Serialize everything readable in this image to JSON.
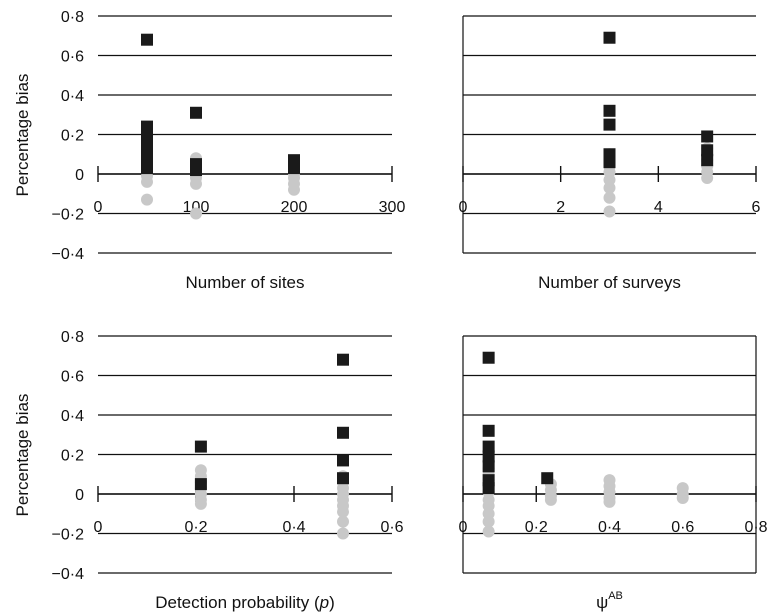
{
  "figure": {
    "ylabel": "Percentage bias",
    "y_tick_labels": [
      "0·8",
      "0·6",
      "0·4",
      "0·2",
      "0",
      "−0·2",
      "−0·4"
    ]
  },
  "colors": {
    "series_a": "#1a1a1a",
    "series_b": "#c8c8c8",
    "gridline": "#111111",
    "axis": "#111111"
  },
  "chart_data": [
    {
      "type": "scatter",
      "xlabel": "Number of sites",
      "xlabel_suffix": "",
      "xlabel_sup": "",
      "ylabel": "Percentage bias",
      "xlim": [
        0,
        300
      ],
      "ylim": [
        -0.4,
        0.8
      ],
      "x_ticks": [
        0,
        100,
        200,
        300
      ],
      "x_tick_labels": [
        "0",
        "100",
        "200",
        "300"
      ],
      "y_ticks": [
        0.8,
        0.6,
        0.4,
        0.2,
        0,
        -0.2,
        -0.4
      ],
      "grid": "horizontal",
      "left_axis": false,
      "frame": false,
      "series": [
        {
          "marker": "square",
          "color": "#1a1a1a",
          "points": [
            [
              50,
              0.68
            ],
            [
              50,
              0.24
            ],
            [
              50,
              0.2
            ],
            [
              50,
              0.17
            ],
            [
              50,
              0.12
            ],
            [
              50,
              0.09
            ],
            [
              50,
              0.06
            ],
            [
              50,
              0.03
            ],
            [
              100,
              0.31
            ],
            [
              100,
              0.05
            ],
            [
              100,
              0.02
            ],
            [
              200,
              0.07
            ],
            [
              200,
              0.03
            ]
          ]
        },
        {
          "marker": "circle",
          "color": "#c8c8c8",
          "points": [
            [
              50,
              0.11
            ],
            [
              50,
              0.08
            ],
            [
              50,
              0.05
            ],
            [
              50,
              0.02
            ],
            [
              50,
              -0.01
            ],
            [
              50,
              -0.04
            ],
            [
              50,
              -0.13
            ],
            [
              100,
              0.08
            ],
            [
              100,
              0.04
            ],
            [
              100,
              0.01
            ],
            [
              100,
              -0.02
            ],
            [
              100,
              -0.05
            ],
            [
              100,
              -0.2
            ],
            [
              200,
              0.06
            ],
            [
              200,
              0.03
            ],
            [
              200,
              0.0
            ],
            [
              200,
              -0.02
            ],
            [
              200,
              -0.05
            ],
            [
              200,
              -0.08
            ]
          ]
        }
      ]
    },
    {
      "type": "scatter",
      "xlabel": "Number of surveys",
      "xlabel_suffix": "",
      "xlabel_sup": "",
      "ylabel": "",
      "xlim": [
        0,
        6
      ],
      "ylim": [
        -0.4,
        0.8
      ],
      "x_ticks": [
        0,
        2,
        4,
        6
      ],
      "x_tick_labels": [
        "0",
        "2",
        "4",
        "6"
      ],
      "y_ticks": [
        0.8,
        0.6,
        0.4,
        0.2,
        0,
        -0.2,
        -0.4
      ],
      "grid": "horizontal",
      "left_axis": true,
      "frame": false,
      "series": [
        {
          "marker": "square",
          "color": "#1a1a1a",
          "points": [
            [
              3,
              0.69
            ],
            [
              3,
              0.32
            ],
            [
              3,
              0.25
            ],
            [
              3,
              0.1
            ],
            [
              3,
              0.06
            ],
            [
              5,
              0.19
            ],
            [
              5,
              0.12
            ],
            [
              5,
              0.07
            ]
          ]
        },
        {
          "marker": "circle",
          "color": "#c8c8c8",
          "points": [
            [
              3,
              0.1
            ],
            [
              3,
              0.07
            ],
            [
              3,
              0.04
            ],
            [
              3,
              0.01
            ],
            [
              3,
              -0.03
            ],
            [
              3,
              -0.07
            ],
            [
              3,
              -0.12
            ],
            [
              3,
              -0.19
            ],
            [
              5,
              0.13
            ],
            [
              5,
              0.1
            ],
            [
              5,
              0.07
            ],
            [
              5,
              0.04
            ],
            [
              5,
              0.01
            ],
            [
              5,
              -0.02
            ]
          ]
        }
      ]
    },
    {
      "type": "scatter",
      "xlabel": "Detection probability (",
      "xlabel_italic": "p",
      "xlabel_suffix": ")",
      "xlabel_sup": "",
      "ylabel": "Percentage bias",
      "xlim": [
        0,
        0.6
      ],
      "ylim": [
        -0.4,
        0.8
      ],
      "x_ticks": [
        0,
        0.2,
        0.4,
        0.6
      ],
      "x_tick_labels": [
        "0",
        "0·2",
        "0·4",
        "0·6"
      ],
      "y_ticks": [
        0.8,
        0.6,
        0.4,
        0.2,
        0,
        -0.2,
        -0.4
      ],
      "grid": "horizontal",
      "left_axis": false,
      "frame": false,
      "series": [
        {
          "marker": "square",
          "color": "#1a1a1a",
          "points": [
            [
              0.21,
              0.24
            ],
            [
              0.21,
              0.05
            ],
            [
              0.5,
              0.68
            ],
            [
              0.5,
              0.31
            ],
            [
              0.5,
              0.17
            ],
            [
              0.5,
              0.08
            ]
          ]
        },
        {
          "marker": "circle",
          "color": "#c8c8c8",
          "points": [
            [
              0.21,
              0.12
            ],
            [
              0.21,
              0.09
            ],
            [
              0.21,
              0.06
            ],
            [
              0.21,
              0.03
            ],
            [
              0.21,
              0.0
            ],
            [
              0.21,
              -0.03
            ],
            [
              0.21,
              -0.05
            ],
            [
              0.5,
              0.09
            ],
            [
              0.5,
              0.06
            ],
            [
              0.5,
              0.03
            ],
            [
              0.5,
              0.0
            ],
            [
              0.5,
              -0.03
            ],
            [
              0.5,
              -0.06
            ],
            [
              0.5,
              -0.09
            ],
            [
              0.5,
              -0.14
            ],
            [
              0.5,
              -0.2
            ]
          ]
        }
      ]
    },
    {
      "type": "scatter",
      "xlabel": "ψ",
      "xlabel_suffix": "",
      "xlabel_sup": "AB",
      "ylabel": "",
      "xlim": [
        0,
        0.8
      ],
      "ylim": [
        -0.4,
        0.8
      ],
      "x_ticks": [
        0,
        0.2,
        0.4,
        0.6,
        0.8
      ],
      "x_tick_labels": [
        "0",
        "0·2",
        "0·4",
        "0·6",
        "0·8"
      ],
      "y_ticks": [
        0.8,
        0.6,
        0.4,
        0.2,
        0,
        -0.2,
        -0.4
      ],
      "grid": "horizontal",
      "left_axis": true,
      "frame": true,
      "series": [
        {
          "marker": "square",
          "color": "#1a1a1a",
          "points": [
            [
              0.07,
              0.69
            ],
            [
              0.07,
              0.32
            ],
            [
              0.07,
              0.24
            ],
            [
              0.07,
              0.19
            ],
            [
              0.07,
              0.14
            ],
            [
              0.07,
              0.07
            ],
            [
              0.07,
              0.03
            ],
            [
              0.23,
              0.08
            ]
          ]
        },
        {
          "marker": "circle",
          "color": "#c8c8c8",
          "points": [
            [
              0.07,
              0.13
            ],
            [
              0.07,
              0.1
            ],
            [
              0.07,
              0.07
            ],
            [
              0.07,
              0.04
            ],
            [
              0.07,
              0.01
            ],
            [
              0.07,
              -0.03
            ],
            [
              0.07,
              -0.06
            ],
            [
              0.07,
              -0.1
            ],
            [
              0.07,
              -0.14
            ],
            [
              0.07,
              -0.19
            ],
            [
              0.24,
              0.05
            ],
            [
              0.24,
              0.02
            ],
            [
              0.24,
              -0.01
            ],
            [
              0.24,
              -0.03
            ],
            [
              0.4,
              0.07
            ],
            [
              0.4,
              0.04
            ],
            [
              0.4,
              0.01
            ],
            [
              0.4,
              -0.02
            ],
            [
              0.4,
              -0.04
            ],
            [
              0.6,
              0.03
            ],
            [
              0.6,
              0.0
            ],
            [
              0.6,
              -0.02
            ]
          ]
        }
      ]
    }
  ]
}
